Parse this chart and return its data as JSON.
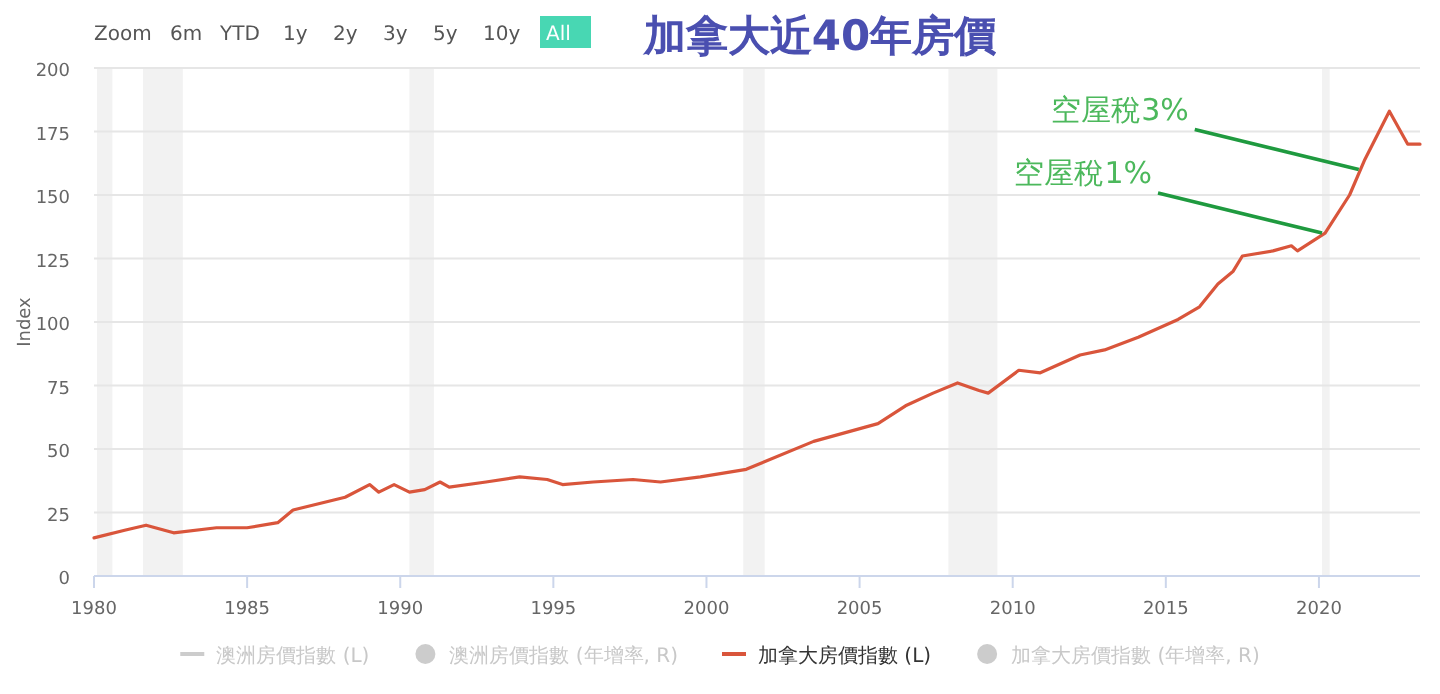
{
  "chart_data": {
    "type": "line",
    "title": "加拿大近40年房價",
    "ylabel": "Index",
    "annotations": [
      "Zoom",
      "6m",
      "YTD",
      "1y",
      "2y",
      "3y",
      "5y",
      "10y",
      "All",
      {
        "text": "空屋稅1%",
        "x": 2020.1,
        "y": 135
      },
      {
        "text": "空屋稅3%",
        "x": 2021.3,
        "y": 160
      }
    ],
    "xlim": [
      1980,
      2023.3
    ],
    "xticks": [
      1980,
      1985,
      1990,
      1995,
      2000,
      2005,
      2010,
      2015,
      2020
    ],
    "ylim": [
      0,
      200
    ],
    "yticks": [
      0,
      25,
      50,
      75,
      100,
      125,
      150,
      175,
      200
    ],
    "grid": "y",
    "legend": "bottom",
    "bands": [
      {
        "axis": "x",
        "from": 1980.1,
        "to": 1980.6,
        "color": "#f2f2f2"
      },
      {
        "axis": "x",
        "from": 1981.6,
        "to": 1982.9,
        "color": "#f2f2f2"
      },
      {
        "axis": "x",
        "from": 1990.3,
        "to": 1991.1,
        "color": "#f2f2f2"
      },
      {
        "axis": "x",
        "from": 2001.2,
        "to": 2001.9,
        "color": "#f2f2f2"
      },
      {
        "axis": "x",
        "from": 2007.9,
        "to": 2009.5,
        "color": "#f2f2f2"
      },
      {
        "axis": "x",
        "from": 2020.1,
        "to": 2020.35,
        "color": "#f2f2f2"
      }
    ],
    "series": [
      {
        "name": "澳洲房價指數 (L)",
        "type": "line",
        "color": "#cccccc"
      },
      {
        "name": "澳洲房價指數 (年增率, R)",
        "type": "scatter",
        "color": "#cccccc"
      },
      {
        "name": "加拿大房價指數 (L)",
        "color": "#d9553b",
        "x": [
          1980,
          1981,
          1981.7,
          1982.6,
          1984,
          1985,
          1986,
          1986.5,
          1988.2,
          1989,
          1989.3,
          1989.8,
          1990.3,
          1990.8,
          1991.3,
          1991.6,
          1992.8,
          1993.9,
          1994.8,
          1995.3,
          1996.3,
          1997.6,
          1998.5,
          1999.8,
          2001.3,
          2003.5,
          2005.6,
          2006.5,
          2007.4,
          2008.2,
          2008.9,
          2009.2,
          2010.2,
          2010.9,
          2012.2,
          2013.0,
          2014.1,
          2015.4,
          2016.1,
          2016.7,
          2017.2,
          2017.5,
          2018.5,
          2019.1,
          2019.3,
          2020.2,
          2021.0,
          2021.5,
          2022.3,
          2022.9,
          2023.3
        ],
        "values": [
          15,
          18,
          20,
          17,
          19,
          19,
          21,
          26,
          31,
          36,
          33,
          36,
          33,
          34,
          37,
          35,
          37,
          39,
          38,
          36,
          37,
          38,
          37,
          39,
          42,
          53,
          60,
          67,
          72,
          76,
          73,
          72,
          81,
          80,
          87,
          89,
          94,
          101,
          106,
          115,
          120,
          126,
          128,
          130,
          128,
          135,
          150,
          164,
          183,
          170,
          170
        ]
      },
      {
        "name": "加拿大房價指數 (年增率, R)",
        "type": "scatter",
        "color": "#cccccc"
      }
    ]
  }
}
